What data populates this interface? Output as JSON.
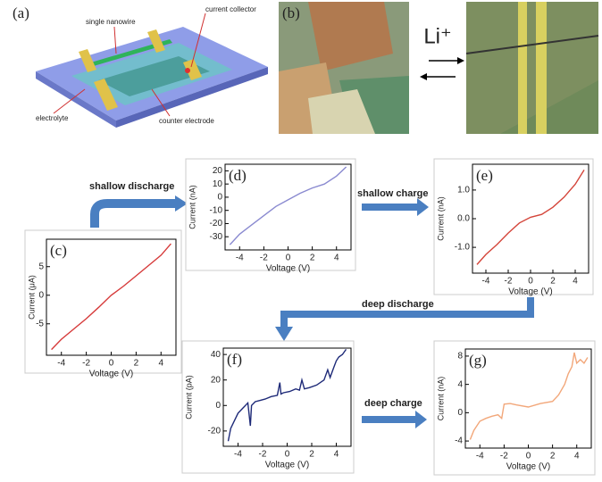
{
  "panel_a": {
    "label": "(a)",
    "texts": [
      "single nanowire",
      "current collector",
      "electrolyte",
      "counter electrode"
    ]
  },
  "panel_b": {
    "label": "(b)",
    "ion": "Li⁺"
  },
  "arrows": [
    "shallow discharge",
    "shallow charge",
    "deep discharge",
    "deep charge"
  ],
  "chart_data": [
    {
      "type": "line",
      "label": "(c)",
      "x_label": "Voltage (V)",
      "y_label": "Current (μA)",
      "color": "#d63a3a",
      "x": [
        -4.8,
        -4,
        -3,
        -2,
        -1,
        0,
        1,
        2,
        3,
        4,
        4.8
      ],
      "values": [
        -9.5,
        -7.7,
        -5.9,
        -4.1,
        -2.1,
        0,
        1.6,
        3.4,
        5.2,
        7.0,
        9.0
      ],
      "xlim": [
        -5.2,
        5.2
      ],
      "ylim": [
        -10.5,
        9.8
      ],
      "xticks": [
        -4,
        -2,
        0,
        2,
        4
      ],
      "yticks": [
        -5,
        0,
        5
      ]
    },
    {
      "type": "line",
      "label": "(d)",
      "x_label": "Voltage (V)",
      "y_label": "Current (nA)",
      "color": "#8a8ad0",
      "x": [
        -4.8,
        -4,
        -3,
        -2,
        -1,
        0,
        1,
        2,
        3,
        4,
        4.8
      ],
      "values": [
        -36,
        -28,
        -21,
        -14,
        -7,
        -2,
        3,
        7,
        10,
        16,
        23
      ],
      "xlim": [
        -5.2,
        5.2
      ],
      "ylim": [
        -40,
        25
      ],
      "xticks": [
        -4,
        -2,
        0,
        2,
        4
      ],
      "yticks": [
        20,
        10,
        0,
        -10,
        -20,
        -30
      ]
    },
    {
      "type": "line",
      "label": "(e)",
      "x_label": "Voltage (V)",
      "y_label": "Current (nA)",
      "color": "#d4453a",
      "x": [
        -4.8,
        -4,
        -3,
        -2,
        -1,
        0,
        1,
        2,
        3,
        4,
        4.8
      ],
      "values": [
        -1.6,
        -1.25,
        -0.9,
        -0.5,
        -0.15,
        0.05,
        0.15,
        0.4,
        0.75,
        1.2,
        1.7
      ],
      "xlim": [
        -5.2,
        5.2
      ],
      "ylim": [
        -1.9,
        1.9
      ],
      "xticks": [
        -4,
        -2,
        0,
        2,
        4
      ],
      "yticks": [
        {
          "value": 1,
          "label": "1.0"
        },
        {
          "value": 0,
          "label": "0.0"
        },
        {
          "value": -1,
          "label": "-1.0"
        }
      ]
    },
    {
      "type": "line",
      "label": "(f)",
      "x_label": "Voltage (V)",
      "y_label": "Current (pA)",
      "color": "#1e2a78",
      "x": [
        -4.8,
        -4.6,
        -4.3,
        -4.0,
        -3.6,
        -3.2,
        -3.0,
        -2.9,
        -2.6,
        -2.2,
        -1.8,
        -1.3,
        -0.8,
        -0.6,
        -0.5,
        -0.3,
        0.2,
        0.7,
        1.0,
        1.2,
        1.4,
        1.8,
        2.4,
        3.0,
        3.3,
        3.5,
        3.8,
        4.0,
        4.2,
        4.5,
        4.8
      ],
      "values": [
        -28,
        -18,
        -12,
        -6,
        -2,
        2,
        -16,
        0,
        3,
        4,
        5,
        7,
        8,
        18,
        9,
        10,
        11,
        13,
        12,
        20,
        13,
        14,
        16,
        20,
        28,
        22,
        30,
        35,
        38,
        40,
        44
      ],
      "xlim": [
        -5.2,
        5.2
      ],
      "ylim": [
        -32,
        45
      ],
      "xticks": [
        -4,
        -2,
        0,
        2,
        4
      ],
      "yticks": [
        40,
        20,
        0,
        -20
      ]
    },
    {
      "type": "line",
      "label": "(g)",
      "x_label": "Voltage (V)",
      "y_label": "Current (nA)",
      "color": "#f2a77a",
      "x": [
        -4.8,
        -4.5,
        -4,
        -3.5,
        -3,
        -2.5,
        -2.2,
        -2,
        -1.5,
        -1,
        0,
        1,
        2,
        2.5,
        3,
        3.3,
        3.6,
        3.8,
        4,
        4.3,
        4.6,
        4.9
      ],
      "values": [
        -3.8,
        -2.5,
        -1.2,
        -0.8,
        -0.5,
        -0.3,
        -0.8,
        1.2,
        1.3,
        1.1,
        0.8,
        1.3,
        1.6,
        2.5,
        4,
        5.5,
        6.5,
        8.5,
        7,
        7.5,
        7,
        7.8
      ],
      "xlim": [
        -5.2,
        5.2
      ],
      "ylim": [
        -5,
        9
      ],
      "xticks": [
        -4,
        -2,
        0,
        2,
        4
      ],
      "yticks": [
        8,
        4,
        0,
        -4
      ]
    }
  ]
}
